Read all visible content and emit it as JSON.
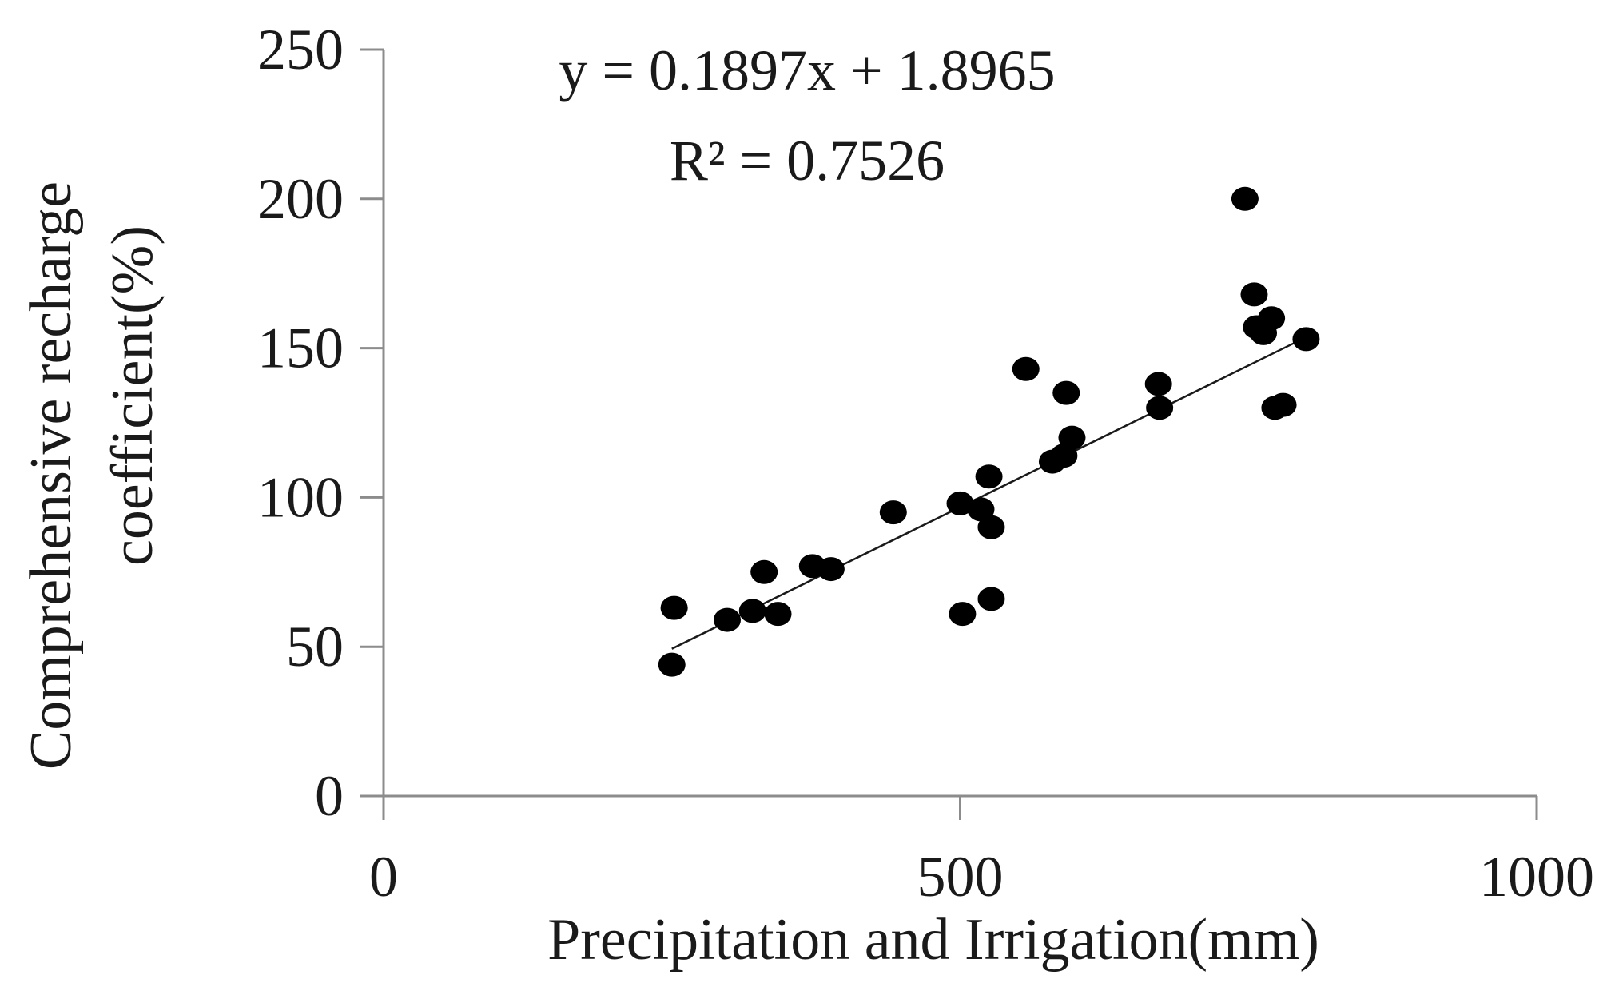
{
  "chart_data": {
    "type": "scatter",
    "title": "",
    "xlabel": "Precipitation and Irrigation(mm)",
    "ylabel_lines": [
      "Comprehensive recharge",
      "coefficient(%)"
    ],
    "xlim": [
      0,
      1000
    ],
    "ylim": [
      0,
      250
    ],
    "x_ticks": [
      0,
      500,
      1000
    ],
    "y_ticks": [
      0,
      50,
      100,
      150,
      200,
      250
    ],
    "x_tick_labels": [
      "0",
      "500",
      "1000"
    ],
    "y_tick_labels": [
      "0",
      "50",
      "100",
      "150",
      "200",
      "250"
    ],
    "grid": false,
    "legend": "none",
    "marker_color": "#000000",
    "points": [
      {
        "x": 250,
        "y": 44
      },
      {
        "x": 252,
        "y": 63
      },
      {
        "x": 298,
        "y": 59
      },
      {
        "x": 320,
        "y": 62
      },
      {
        "x": 330,
        "y": 75
      },
      {
        "x": 342,
        "y": 61
      },
      {
        "x": 372,
        "y": 77
      },
      {
        "x": 388,
        "y": 76
      },
      {
        "x": 442,
        "y": 95
      },
      {
        "x": 500,
        "y": 98
      },
      {
        "x": 502,
        "y": 61
      },
      {
        "x": 518,
        "y": 96
      },
      {
        "x": 525,
        "y": 107
      },
      {
        "x": 527,
        "y": 90
      },
      {
        "x": 527,
        "y": 66
      },
      {
        "x": 557,
        "y": 143
      },
      {
        "x": 580,
        "y": 112
      },
      {
        "x": 590,
        "y": 114
      },
      {
        "x": 592,
        "y": 135
      },
      {
        "x": 597,
        "y": 120
      },
      {
        "x": 672,
        "y": 138
      },
      {
        "x": 673,
        "y": 130
      },
      {
        "x": 747,
        "y": 200
      },
      {
        "x": 755,
        "y": 168
      },
      {
        "x": 757,
        "y": 157
      },
      {
        "x": 763,
        "y": 155
      },
      {
        "x": 770,
        "y": 160
      },
      {
        "x": 773,
        "y": 130
      },
      {
        "x": 780,
        "y": 131
      },
      {
        "x": 800,
        "y": 153
      }
    ],
    "trendline": {
      "equation": "y = 0.1897x + 1.8965",
      "r_squared": "R² = 0.7526",
      "slope": 0.1897,
      "intercept": 1.8965,
      "x_range": [
        250,
        800
      ]
    }
  }
}
